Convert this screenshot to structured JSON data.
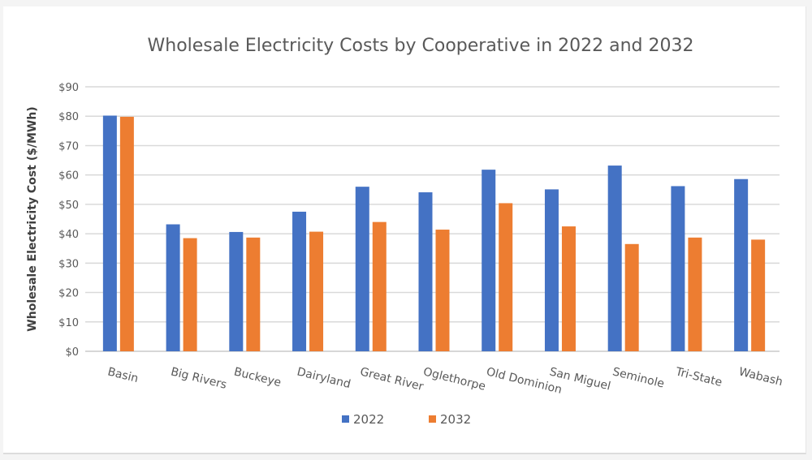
{
  "chart_data": {
    "type": "bar",
    "title": "Wholesale Electricity Costs by Cooperative in 2022 and 2032",
    "xlabel": "",
    "ylabel": "Wholesale Electricity Cost ($/MWh)",
    "ylim": [
      0,
      90
    ],
    "ytick_step": 10,
    "ytick_labels": [
      "$0",
      "$10",
      "$20",
      "$30",
      "$40",
      "$50",
      "$60",
      "$70",
      "$80",
      "$90"
    ],
    "grid": true,
    "legend_position": "bottom",
    "categories": [
      "Basin",
      "Big Rivers",
      "Buckeye",
      "Dairyland",
      "Great River",
      "Oglethorpe",
      "Old Dominion",
      "San Miguel",
      "Seminole",
      "Tri-State",
      "Wabash"
    ],
    "series": [
      {
        "name": "2022",
        "color": "#4472c4",
        "values": [
          80.2,
          43.2,
          40.6,
          47.5,
          56.0,
          54.1,
          61.8,
          55.1,
          63.2,
          56.2,
          58.6
        ]
      },
      {
        "name": "2032",
        "color": "#ed7d31",
        "values": [
          79.8,
          38.5,
          38.7,
          40.7,
          44.0,
          41.4,
          50.4,
          42.5,
          36.5,
          38.7,
          38.0
        ]
      }
    ]
  }
}
